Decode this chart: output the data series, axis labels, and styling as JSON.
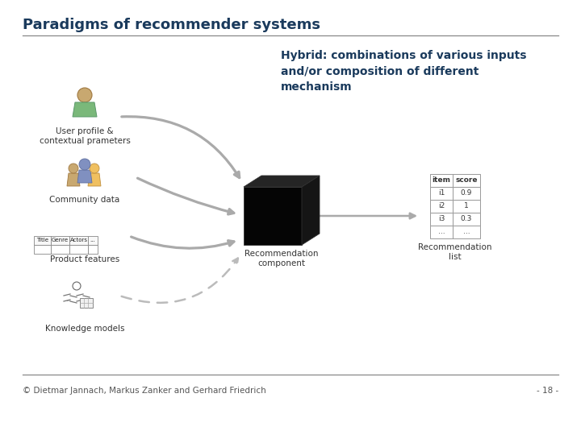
{
  "title": "Paradigms of recommender systems",
  "title_color": "#1a3a5c",
  "title_fontsize": 13,
  "hybrid_text": "Hybrid: combinations of various inputs\nand/or composition of different\nmechanism",
  "hybrid_color": "#1a3a5c",
  "hybrid_fontsize": 10,
  "footer_text": "© Dietmar Jannach, Markus Zanker and Gerhard Friedrich",
  "footer_right": "- 18 -",
  "footer_fontsize": 7.5,
  "footer_color": "#555555",
  "background_color": "#ffffff",
  "label_user": "User profile &\ncontextual prameters",
  "label_community": "Community data",
  "label_product": "Product features",
  "label_knowledge": "Knowledge models",
  "label_rec_comp": "Recommendation\ncomponent",
  "label_rec_list": "Recommendation\nlist",
  "label_color": "#333333",
  "label_fontsize": 7.5,
  "table_header": [
    "item",
    "score"
  ],
  "table_rows": [
    [
      "i1",
      "0.9"
    ],
    [
      "i2",
      "1"
    ],
    [
      "i3",
      "0.3"
    ],
    [
      "...",
      "..."
    ]
  ],
  "arrow_color": "#aaaaaa",
  "separator_color": "#888888"
}
